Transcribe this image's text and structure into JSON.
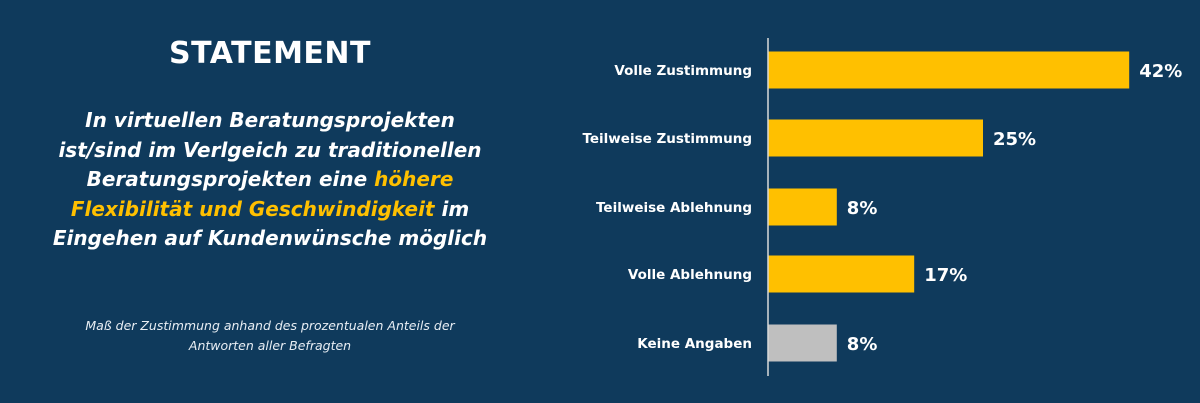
{
  "statement": {
    "heading": "STATEMENT",
    "line1": "In virtuellen Beratungsprojekten",
    "line2": "ist/sind im Verlgeich zu traditionellen",
    "line3_pre": "Beratungsprojekten eine ",
    "line3_highlight": "höhere",
    "line4_highlight": "Flexibilität und Geschwindigkeit",
    "line4_post": " im",
    "line5": "Eingehen auf Kundenwünsche möglich",
    "footnote_line1": "Maß der Zustimmung anhand des prozentualen Anteils der",
    "footnote_line2": "Antworten aller Befragten"
  },
  "colors": {
    "background": "#0f3a5c",
    "bar": "#ffc000",
    "bar_no_answer": "#bfbfbf",
    "highlight": "#ffc000"
  },
  "chart_data": {
    "type": "bar",
    "orientation": "horizontal",
    "categories": [
      "Volle Zustimmung",
      "Teilweise Zustimmung",
      "Teilweise Ablehnung",
      "Volle Ablehnung",
      "Keine Angaben"
    ],
    "values": [
      42,
      25,
      8,
      17,
      8
    ],
    "value_labels": [
      "42%",
      "25%",
      "8%",
      "17%",
      "8%"
    ],
    "unit": "%",
    "xlim": [
      0,
      45
    ],
    "grid": false,
    "legend": "none"
  }
}
